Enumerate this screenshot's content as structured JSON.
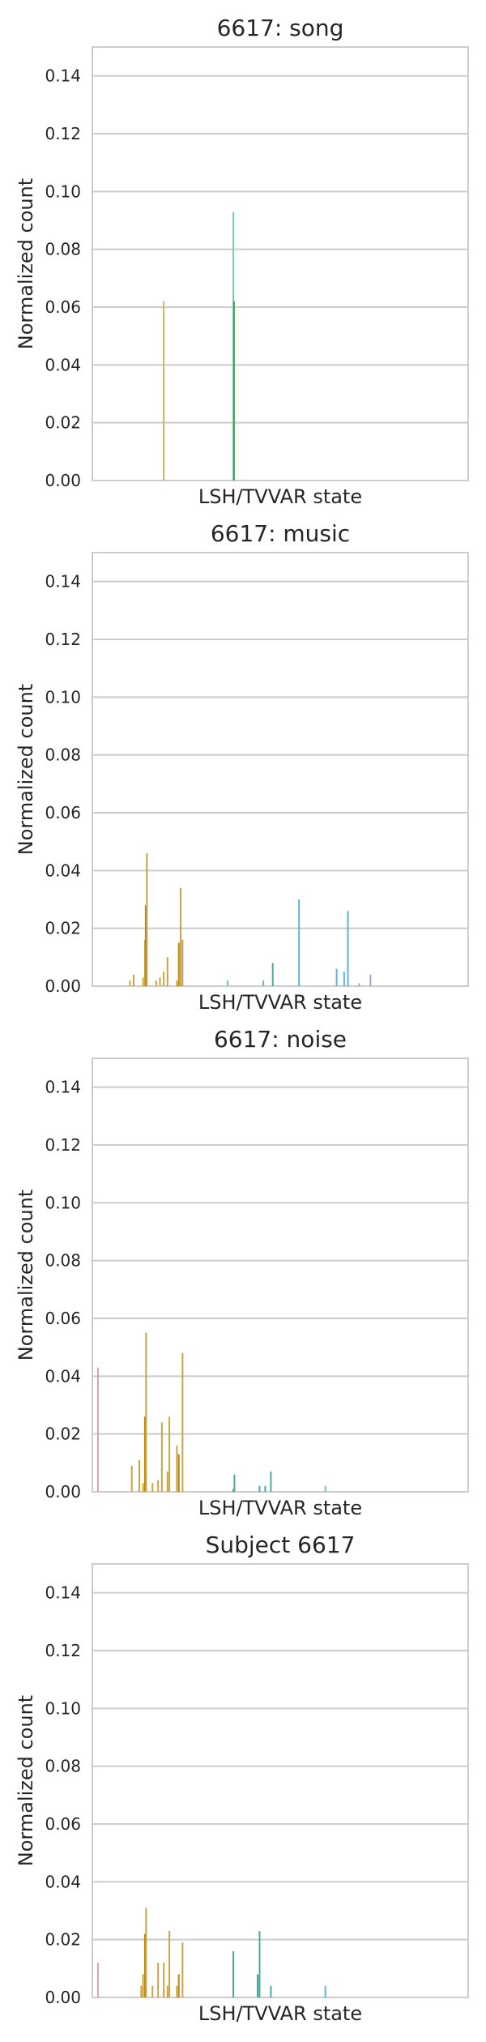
{
  "chart_data": [
    {
      "type": "bar",
      "title": "6617: song",
      "xlabel": "LSH/TVVAR state",
      "ylabel": "Normalized count",
      "ylim": [
        0,
        0.15
      ],
      "yticks": [
        "0.00",
        "0.02",
        "0.04",
        "0.06",
        "0.08",
        "0.10",
        "0.12",
        "0.14"
      ],
      "grid": true,
      "series": [
        {
          "values": [
            {
              "x": 0.19,
              "y": 0.062,
              "color": "#c9b36d"
            },
            {
              "x": 0.375,
              "y": 0.093,
              "color": "#7fd3a3"
            },
            {
              "x": 0.377,
              "y": 0.062,
              "color": "#27b05e"
            }
          ]
        }
      ]
    },
    {
      "type": "bar",
      "title": "6617: music",
      "xlabel": "LSH/TVVAR state",
      "ylabel": "Normalized count",
      "ylim": [
        0,
        0.15
      ],
      "yticks": [
        "0.00",
        "0.02",
        "0.04",
        "0.06",
        "0.08",
        "0.10",
        "0.12",
        "0.14"
      ],
      "grid": true,
      "series": [
        {
          "values": [
            {
              "x": 0.1,
              "y": 0.002,
              "color": "#c9a347"
            },
            {
              "x": 0.11,
              "y": 0.004,
              "color": "#c9a347"
            },
            {
              "x": 0.135,
              "y": 0.003,
              "color": "#c9a347"
            },
            {
              "x": 0.14,
              "y": 0.016,
              "color": "#c9a347"
            },
            {
              "x": 0.142,
              "y": 0.028,
              "color": "#b8860b"
            },
            {
              "x": 0.145,
              "y": 0.046,
              "color": "#c9a347"
            },
            {
              "x": 0.17,
              "y": 0.002,
              "color": "#c9a347"
            },
            {
              "x": 0.18,
              "y": 0.003,
              "color": "#c9a347"
            },
            {
              "x": 0.19,
              "y": 0.005,
              "color": "#c9a347"
            },
            {
              "x": 0.2,
              "y": 0.01,
              "color": "#c9a347"
            },
            {
              "x": 0.225,
              "y": 0.002,
              "color": "#c9a347"
            },
            {
              "x": 0.23,
              "y": 0.015,
              "color": "#b8860b"
            },
            {
              "x": 0.235,
              "y": 0.034,
              "color": "#c9a347"
            },
            {
              "x": 0.24,
              "y": 0.016,
              "color": "#c9a347"
            },
            {
              "x": 0.36,
              "y": 0.002,
              "color": "#7bb8a9"
            },
            {
              "x": 0.455,
              "y": 0.002,
              "color": "#7bb8a9"
            },
            {
              "x": 0.48,
              "y": 0.008,
              "color": "#4fa8a0"
            },
            {
              "x": 0.55,
              "y": 0.03,
              "color": "#5bb5d5"
            },
            {
              "x": 0.65,
              "y": 0.006,
              "color": "#5bb5d5"
            },
            {
              "x": 0.67,
              "y": 0.005,
              "color": "#5bb5d5"
            },
            {
              "x": 0.68,
              "y": 0.026,
              "color": "#5bb5d5"
            },
            {
              "x": 0.71,
              "y": 0.001,
              "color": "#a0a8c8"
            },
            {
              "x": 0.74,
              "y": 0.004,
              "color": "#a0a8c8"
            }
          ]
        }
      ]
    },
    {
      "type": "bar",
      "title": "6617: noise",
      "xlabel": "LSH/TVVAR state",
      "ylabel": "Normalized count",
      "ylim": [
        0,
        0.15
      ],
      "yticks": [
        "0.00",
        "0.02",
        "0.04",
        "0.06",
        "0.08",
        "0.10",
        "0.12",
        "0.14"
      ],
      "grid": true,
      "series": [
        {
          "values": [
            {
              "x": 0.015,
              "y": 0.043,
              "color": "#d9a0c0"
            },
            {
              "x": 0.105,
              "y": 0.009,
              "color": "#c9a347"
            },
            {
              "x": 0.125,
              "y": 0.011,
              "color": "#c9a347"
            },
            {
              "x": 0.135,
              "y": 0.003,
              "color": "#c9a347"
            },
            {
              "x": 0.14,
              "y": 0.026,
              "color": "#b8860b"
            },
            {
              "x": 0.143,
              "y": 0.055,
              "color": "#c9a347"
            },
            {
              "x": 0.16,
              "y": 0.003,
              "color": "#c9a347"
            },
            {
              "x": 0.175,
              "y": 0.004,
              "color": "#c9a347"
            },
            {
              "x": 0.185,
              "y": 0.024,
              "color": "#c9a347"
            },
            {
              "x": 0.2,
              "y": 0.007,
              "color": "#c9a347"
            },
            {
              "x": 0.205,
              "y": 0.026,
              "color": "#c9a347"
            },
            {
              "x": 0.225,
              "y": 0.016,
              "color": "#c9a347"
            },
            {
              "x": 0.23,
              "y": 0.013,
              "color": "#b8860b"
            },
            {
              "x": 0.24,
              "y": 0.048,
              "color": "#c9a347"
            },
            {
              "x": 0.375,
              "y": 0.001,
              "color": "#4fa8a0"
            },
            {
              "x": 0.378,
              "y": 0.006,
              "color": "#4fa8a0"
            },
            {
              "x": 0.445,
              "y": 0.002,
              "color": "#4fa8a0"
            },
            {
              "x": 0.46,
              "y": 0.002,
              "color": "#4fa8a0"
            },
            {
              "x": 0.475,
              "y": 0.007,
              "color": "#4fa8a0"
            },
            {
              "x": 0.62,
              "y": 0.002,
              "color": "#7bb8c9"
            }
          ]
        }
      ]
    },
    {
      "type": "bar",
      "title": "Subject 6617",
      "xlabel": "LSH/TVVAR state",
      "ylabel": "Normalized count",
      "ylim": [
        0,
        0.15
      ],
      "yticks": [
        "0.00",
        "0.02",
        "0.04",
        "0.06",
        "0.08",
        "0.10",
        "0.12",
        "0.14"
      ],
      "grid": true,
      "series": [
        {
          "values": [
            {
              "x": 0.015,
              "y": 0.012,
              "color": "#d9a0c0"
            },
            {
              "x": 0.13,
              "y": 0.004,
              "color": "#c9a347"
            },
            {
              "x": 0.135,
              "y": 0.008,
              "color": "#c9a347"
            },
            {
              "x": 0.14,
              "y": 0.022,
              "color": "#b8860b"
            },
            {
              "x": 0.143,
              "y": 0.031,
              "color": "#c9a347"
            },
            {
              "x": 0.16,
              "y": 0.004,
              "color": "#c9a347"
            },
            {
              "x": 0.175,
              "y": 0.012,
              "color": "#c9a347"
            },
            {
              "x": 0.19,
              "y": 0.012,
              "color": "#c9a347"
            },
            {
              "x": 0.2,
              "y": 0.004,
              "color": "#c9a347"
            },
            {
              "x": 0.205,
              "y": 0.023,
              "color": "#c9a347"
            },
            {
              "x": 0.225,
              "y": 0.004,
              "color": "#c9a347"
            },
            {
              "x": 0.23,
              "y": 0.008,
              "color": "#b8860b"
            },
            {
              "x": 0.24,
              "y": 0.019,
              "color": "#c9a347"
            },
            {
              "x": 0.375,
              "y": 0.016,
              "color": "#4fa8a0"
            },
            {
              "x": 0.44,
              "y": 0.008,
              "color": "#3f9a8e"
            },
            {
              "x": 0.445,
              "y": 0.023,
              "color": "#4fa8a0"
            },
            {
              "x": 0.475,
              "y": 0.004,
              "color": "#4fa8a0"
            },
            {
              "x": 0.62,
              "y": 0.004,
              "color": "#5bb5d5"
            }
          ]
        }
      ]
    }
  ]
}
